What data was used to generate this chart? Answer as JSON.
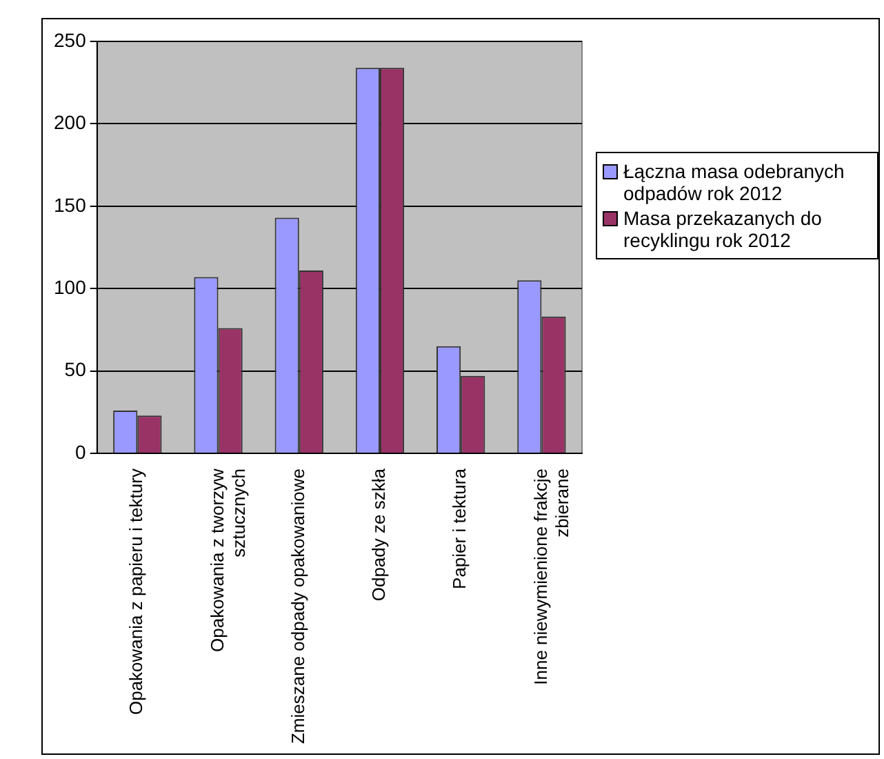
{
  "chart_data": {
    "type": "bar",
    "categories": [
      "Opakowania z papieru i tektury",
      "Opakowania z tworzyw sztucznych",
      "Zmieszane odpady opakowaniowe",
      "Odpady ze szkła",
      "Papier i tektura",
      "Inne niewymienione frakcje zbierane"
    ],
    "series": [
      {
        "name": "Łączna masa odebranych odpadów rok 2012",
        "color": "#9999ff",
        "values": [
          26,
          107,
          143,
          234,
          65,
          105
        ]
      },
      {
        "name": "Masa przekazanych do recyklingu rok 2012",
        "color": "#993366",
        "values": [
          23,
          76,
          111,
          234,
          47,
          83
        ]
      }
    ],
    "ylim": [
      0,
      250
    ],
    "yticks": [
      0,
      50,
      100,
      150,
      200,
      250
    ],
    "grid": "y",
    "legend": "right"
  }
}
